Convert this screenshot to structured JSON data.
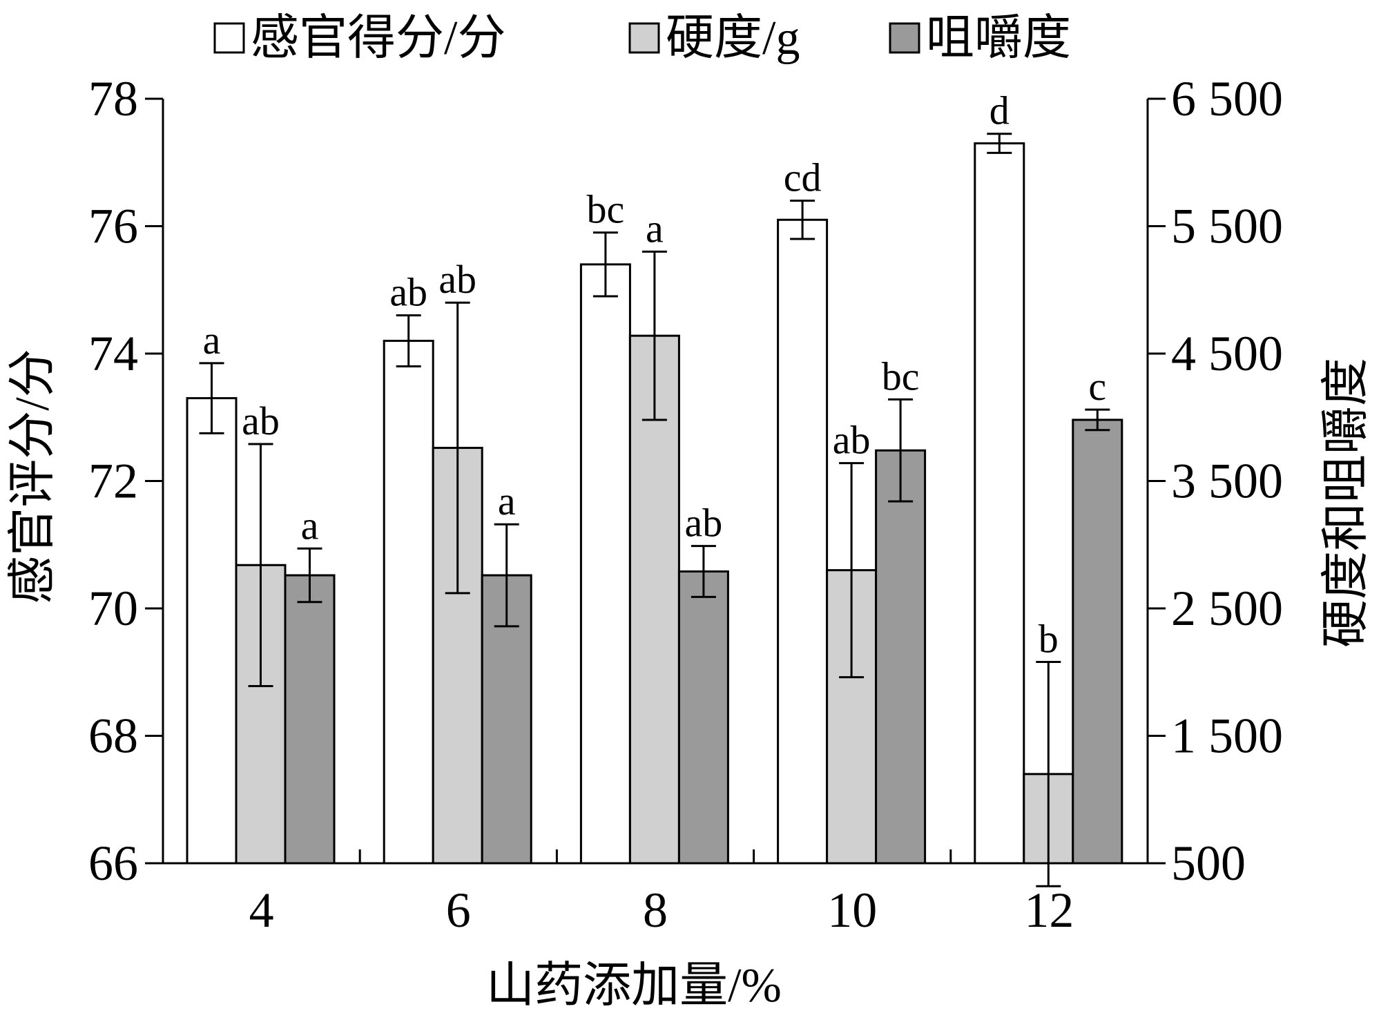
{
  "chart_data": {
    "type": "bar",
    "xlabel": "山药添加量/%",
    "ylabel_left": "感官评分/分",
    "ylabel_right": "硬度和咀嚼度",
    "categories": [
      "4",
      "6",
      "8",
      "10",
      "12"
    ],
    "left_axis": {
      "ylim": [
        66,
        78
      ],
      "ticks": [
        "66",
        "68",
        "70",
        "72",
        "74",
        "76",
        "78"
      ],
      "tick_values": [
        66,
        68,
        70,
        72,
        74,
        76,
        78
      ]
    },
    "right_axis": {
      "ylim": [
        500,
        6500
      ],
      "ticks": [
        "500",
        "1 500",
        "2 500",
        "3 500",
        "4 500",
        "5 500",
        "6 500"
      ],
      "tick_values": [
        500,
        1500,
        2500,
        3500,
        4500,
        5500,
        6500
      ]
    },
    "grid": false,
    "legend_position": "top",
    "series": [
      {
        "name": "感官得分/分",
        "axis": "left",
        "color": "#ffffff",
        "values": [
          73.3,
          74.2,
          75.4,
          76.1,
          77.3
        ],
        "errors": [
          0.55,
          0.4,
          0.5,
          0.3,
          0.15
        ],
        "labels": [
          "a",
          "ab",
          "bc",
          "cd",
          "d"
        ]
      },
      {
        "name": "硬度/g",
        "axis": "right",
        "color": "#d0d0d0",
        "values": [
          2840,
          3760,
          4640,
          2800,
          1200
        ],
        "errors": [
          950,
          1140,
          660,
          840,
          880
        ],
        "labels": [
          "ab",
          "ab",
          "a",
          "ab",
          "b"
        ]
      },
      {
        "name": "咀嚼度",
        "axis": "right",
        "color": "#9a9a9a",
        "values": [
          2760,
          2760,
          2790,
          3740,
          3980
        ],
        "errors": [
          210,
          400,
          200,
          400,
          80
        ],
        "labels": [
          "a",
          "a",
          "ab",
          "bc",
          "c"
        ]
      }
    ]
  }
}
